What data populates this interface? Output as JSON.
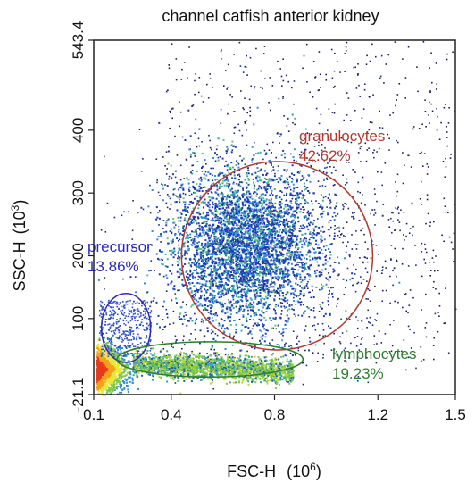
{
  "chart_data": {
    "type": "scatter",
    "title": "channel catfish anterior kidney",
    "xlabel": "FSC-H",
    "xlabel_unit": "(10",
    "xlabel_exp": "6",
    "xlabel_close": ")",
    "ylabel": "SSC-H",
    "ylabel_unit": "(10",
    "ylabel_exp": "3",
    "ylabel_close": ")",
    "xlim": [
      0.1,
      1.5
    ],
    "ylim": [
      -21.1,
      543.4
    ],
    "x_ticks": [
      {
        "value": 0.1,
        "label": "0.1"
      },
      {
        "value": 0.4,
        "label": "0.4"
      },
      {
        "value": 0.8,
        "label": "0.8"
      },
      {
        "value": 1.2,
        "label": "1.2"
      },
      {
        "value": 1.5,
        "label": "1.5"
      }
    ],
    "y_ticks": [
      {
        "value": -21.1,
        "label": "-21.1"
      },
      {
        "value": 100,
        "label": "100"
      },
      {
        "value": 200,
        "label": "200"
      },
      {
        "value": 300,
        "label": "300"
      },
      {
        "value": 400,
        "label": "400"
      },
      {
        "value": 543.4,
        "label": "543.4"
      }
    ],
    "grid": false,
    "density_coloring": true,
    "gates": [
      {
        "name": "granulocytes",
        "percent": "42.62%",
        "color": "#b03a2e",
        "cx": 0.81,
        "cy": 200,
        "rx": 0.37,
        "ry": 150
      },
      {
        "name": "precursor",
        "percent": "13.86%",
        "color": "#2b2bb8",
        "cx": 0.225,
        "cy": 85,
        "rx": 0.095,
        "ry": 55
      },
      {
        "name": "lymphocytes",
        "percent": "19.23%",
        "color": "#2e7d2e",
        "cx": 0.55,
        "cy": 35,
        "rx": 0.36,
        "ry": 28
      }
    ]
  }
}
